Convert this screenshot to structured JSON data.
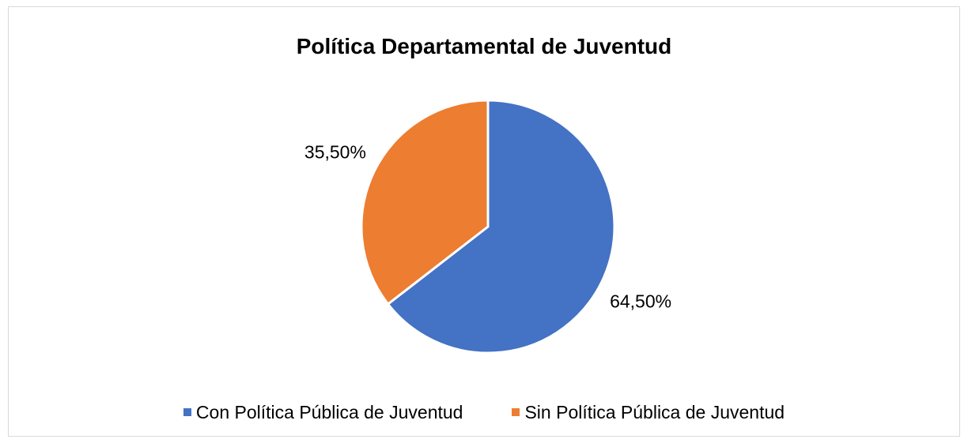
{
  "chart_data": {
    "type": "pie",
    "title": "Política Departamental de Juventud",
    "categories": [
      "Con Política Pública de Juventud",
      "Sin Política Pública de Juventud"
    ],
    "values": [
      64.5,
      35.5
    ],
    "data_labels": [
      "64,50%",
      "35,50%"
    ],
    "colors": [
      "#4472c4",
      "#ed7d31"
    ],
    "start_angle_deg": 0,
    "direction": "clockwise",
    "legend": "bottom"
  }
}
